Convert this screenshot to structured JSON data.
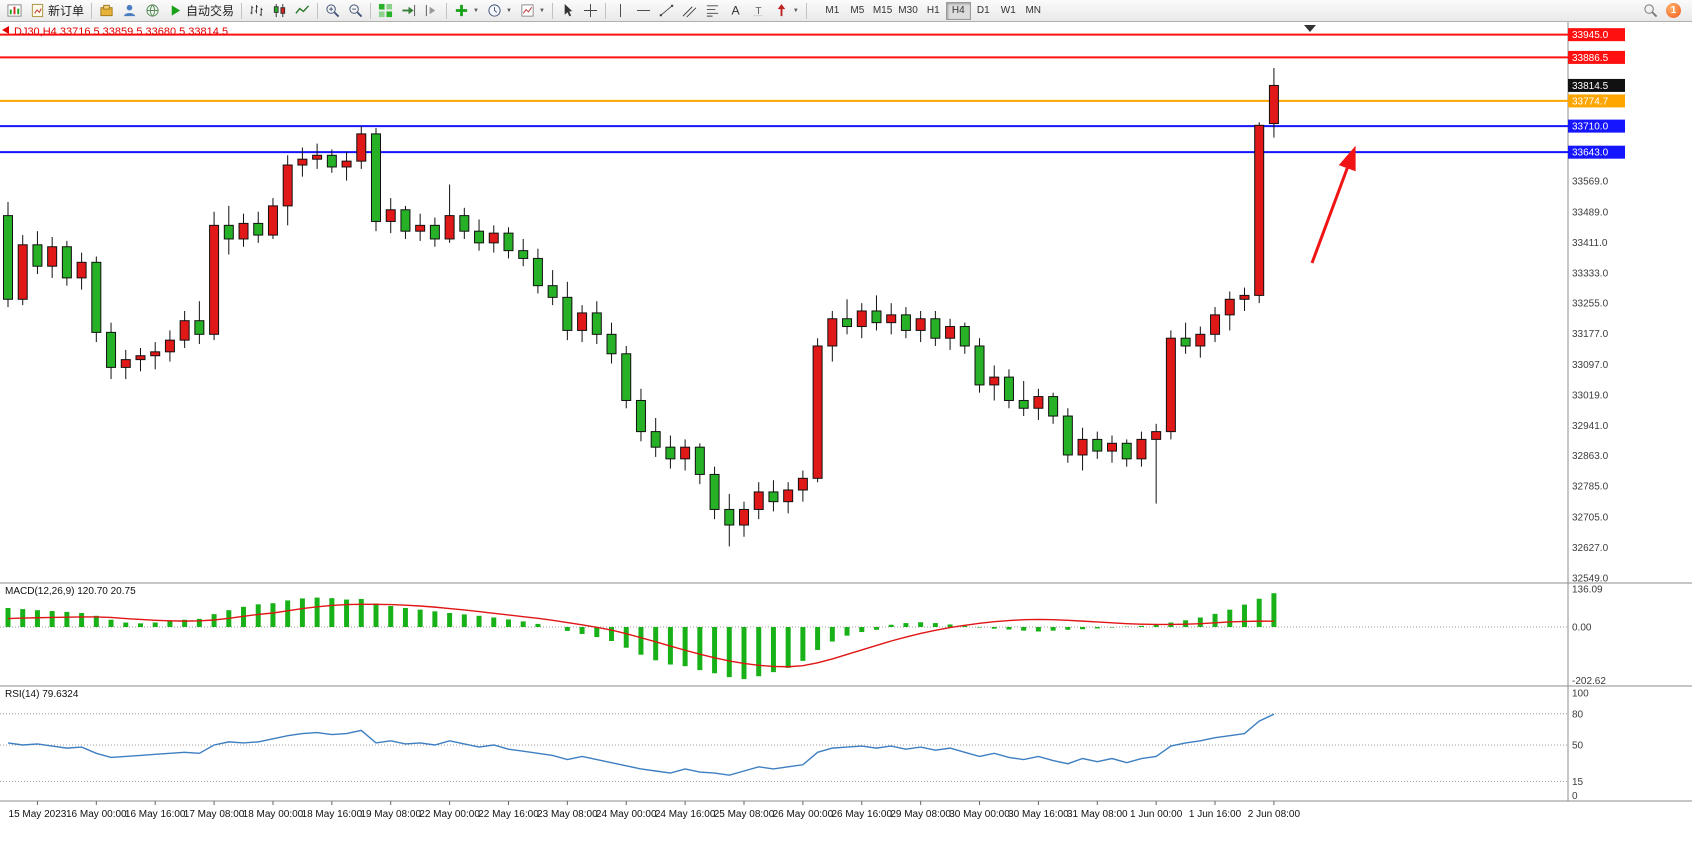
{
  "toolbar": {
    "new_order_label": "新订单",
    "autotrading_label": "自动交易",
    "timeframes": [
      "M1",
      "M5",
      "M15",
      "M30",
      "H1",
      "H4",
      "D1",
      "W1",
      "MN"
    ],
    "active_timeframe": "H4",
    "notification_count": "1"
  },
  "chart": {
    "symbol_info": "DJ30,H4 33716.5 33859.5 33680.5 33814.5",
    "symbol": "DJ30",
    "timeframe": "H4",
    "open": "33716.5",
    "high": "33859.5",
    "low": "33680.5",
    "close": "33814.5",
    "current_price": "33814.5",
    "colors": {
      "up_candle": "#e11818",
      "down_candle": "#27b127",
      "level_red": "#ff1010",
      "level_orange": "#ffa500",
      "level_blue": "#1515ff",
      "current_price_badge": "#111111",
      "macd_hist": "#18b118",
      "macd_signal": "#e01515",
      "rsi_line": "#3e7fc1",
      "arrow": "#f01414"
    },
    "levels": [
      {
        "label": "33945.0",
        "price": 33945.0,
        "color": "red"
      },
      {
        "label": "33886.5",
        "price": 33886.5,
        "color": "red"
      },
      {
        "label": "33774.7",
        "price": 33774.7,
        "color": "orange"
      },
      {
        "label": "33710.0",
        "price": 33710.0,
        "color": "blue"
      },
      {
        "label": "33643.0",
        "price": 33643.0,
        "color": "blue"
      }
    ],
    "y_axis_labels": [
      33569.0,
      33489.0,
      33411.0,
      33333.0,
      33255.0,
      33177.0,
      33097.0,
      33019.0,
      32941.0,
      32863.0,
      32785.0,
      32705.0,
      32627.0,
      32549.0
    ]
  },
  "macd": {
    "label": "MACD(12,26,9) 120.70 20.75",
    "axis_labels": [
      "136.09",
      "0.00",
      "-202.62"
    ]
  },
  "rsi": {
    "label": "RSI(14) 79.6324",
    "axis_labels": [
      "100",
      "80",
      "50",
      "15",
      "0"
    ],
    "levels": [
      80,
      50,
      15
    ]
  },
  "time_axis": {
    "labels": [
      [
        2,
        "15 May 2023"
      ],
      [
        6,
        "16 May 00:00"
      ],
      [
        10,
        "16 May 16:00"
      ],
      [
        14,
        "17 May 08:00"
      ],
      [
        18,
        "18 May 00:00"
      ],
      [
        22,
        "18 May 16:00"
      ],
      [
        26,
        "19 May 08:00"
      ],
      [
        30,
        "22 May 00:00"
      ],
      [
        34,
        "22 May 16:00"
      ],
      [
        38,
        "23 May 08:00"
      ],
      [
        42,
        "24 May 00:00"
      ],
      [
        46,
        "24 May 16:00"
      ],
      [
        50,
        "25 May 08:00"
      ],
      [
        54,
        "26 May 00:00"
      ],
      [
        58,
        "26 May 16:00"
      ],
      [
        62,
        "29 May 08:00"
      ],
      [
        66,
        "30 May 00:00"
      ],
      [
        70,
        "30 May 16:00"
      ],
      [
        74,
        "31 May 08:00"
      ],
      [
        78,
        "1 Jun 00:00"
      ],
      [
        82,
        "1 Jun 16:00"
      ],
      [
        86,
        "2 Jun 08:00"
      ]
    ]
  },
  "chart_data": {
    "type": "candlestick",
    "symbol": "DJ30",
    "period": "H4",
    "y_range_main": [
      32536,
      33977.5
    ],
    "macd_range": [
      -202.62,
      136.09
    ],
    "rsi_range": [
      0,
      100
    ],
    "candles": [
      [
        33480,
        33515,
        33245,
        33265
      ],
      [
        33265,
        33430,
        33250,
        33405
      ],
      [
        33405,
        33440,
        33330,
        33350
      ],
      [
        33350,
        33425,
        33320,
        33400
      ],
      [
        33400,
        33415,
        33300,
        33320
      ],
      [
        33320,
        33385,
        33290,
        33360
      ],
      [
        33360,
        33375,
        33155,
        33180
      ],
      [
        33180,
        33205,
        33060,
        33090
      ],
      [
        33090,
        33135,
        33060,
        33110
      ],
      [
        33110,
        33140,
        33080,
        33120
      ],
      [
        33120,
        33155,
        33085,
        33130
      ],
      [
        33130,
        33185,
        33105,
        33160
      ],
      [
        33160,
        33235,
        33140,
        33210
      ],
      [
        33210,
        33260,
        33150,
        33175
      ],
      [
        33175,
        33490,
        33160,
        33455
      ],
      [
        33455,
        33505,
        33380,
        33420
      ],
      [
        33420,
        33485,
        33400,
        33460
      ],
      [
        33460,
        33490,
        33410,
        33430
      ],
      [
        33430,
        33525,
        33420,
        33505
      ],
      [
        33505,
        33635,
        33455,
        33610
      ],
      [
        33610,
        33655,
        33580,
        33625
      ],
      [
        33625,
        33665,
        33600,
        33635
      ],
      [
        33635,
        33650,
        33590,
        33605
      ],
      [
        33605,
        33645,
        33570,
        33620
      ],
      [
        33620,
        33710,
        33600,
        33690
      ],
      [
        33690,
        33705,
        33440,
        33465
      ],
      [
        33465,
        33525,
        33435,
        33495
      ],
      [
        33495,
        33505,
        33420,
        33440
      ],
      [
        33440,
        33485,
        33415,
        33455
      ],
      [
        33455,
        33475,
        33400,
        33420
      ],
      [
        33420,
        33560,
        33410,
        33480
      ],
      [
        33480,
        33500,
        33420,
        33440
      ],
      [
        33440,
        33470,
        33390,
        33410
      ],
      [
        33410,
        33455,
        33385,
        33435
      ],
      [
        33435,
        33450,
        33370,
        33390
      ],
      [
        33390,
        33420,
        33350,
        33370
      ],
      [
        33370,
        33395,
        33280,
        33300
      ],
      [
        33300,
        33340,
        33250,
        33270
      ],
      [
        33270,
        33310,
        33160,
        33185
      ],
      [
        33185,
        33250,
        33155,
        33230
      ],
      [
        33230,
        33260,
        33150,
        33175
      ],
      [
        33175,
        33205,
        33100,
        33125
      ],
      [
        33125,
        33145,
        32985,
        33005
      ],
      [
        33005,
        33035,
        32900,
        32925
      ],
      [
        32925,
        32960,
        32860,
        32885
      ],
      [
        32885,
        32915,
        32830,
        32855
      ],
      [
        32855,
        32905,
        32825,
        32885
      ],
      [
        32885,
        32895,
        32790,
        32815
      ],
      [
        32815,
        32835,
        32700,
        32725
      ],
      [
        32725,
        32765,
        32630,
        32685
      ],
      [
        32685,
        32745,
        32655,
        32725
      ],
      [
        32725,
        32795,
        32700,
        32770
      ],
      [
        32770,
        32800,
        32720,
        32745
      ],
      [
        32745,
        32795,
        32715,
        32775
      ],
      [
        32775,
        32825,
        32745,
        32805
      ],
      [
        32805,
        33165,
        32795,
        33145
      ],
      [
        33145,
        33235,
        33105,
        33215
      ],
      [
        33215,
        33265,
        33175,
        33195
      ],
      [
        33195,
        33255,
        33165,
        33235
      ],
      [
        33235,
        33275,
        33185,
        33205
      ],
      [
        33205,
        33255,
        33175,
        33225
      ],
      [
        33225,
        33245,
        33165,
        33185
      ],
      [
        33185,
        33235,
        33155,
        33215
      ],
      [
        33215,
        33235,
        33145,
        33165
      ],
      [
        33165,
        33215,
        33135,
        33195
      ],
      [
        33195,
        33205,
        33125,
        33145
      ],
      [
        33145,
        33165,
        33025,
        33045
      ],
      [
        33045,
        33095,
        33005,
        33065
      ],
      [
        33065,
        33085,
        32985,
        33005
      ],
      [
        33005,
        33055,
        32965,
        32985
      ],
      [
        32985,
        33035,
        32955,
        33015
      ],
      [
        33015,
        33025,
        32945,
        32965
      ],
      [
        32965,
        32985,
        32845,
        32865
      ],
      [
        32865,
        32935,
        32825,
        32905
      ],
      [
        32905,
        32925,
        32855,
        32875
      ],
      [
        32875,
        32915,
        32845,
        32895
      ],
      [
        32895,
        32905,
        32835,
        32855
      ],
      [
        32855,
        32925,
        32835,
        32905
      ],
      [
        32905,
        32945,
        32740,
        32925
      ],
      [
        32925,
        33185,
        32905,
        33165
      ],
      [
        33165,
        33205,
        33125,
        33145
      ],
      [
        33145,
        33195,
        33115,
        33175
      ],
      [
        33175,
        33245,
        33155,
        33225
      ],
      [
        33225,
        33285,
        33185,
        33265
      ],
      [
        33265,
        33295,
        33235,
        33275
      ],
      [
        33275,
        33720,
        33255,
        33712
      ],
      [
        33716.5,
        33859.5,
        33680.5,
        33814.5
      ]
    ],
    "macd_histogram": [
      68,
      64,
      60,
      57,
      54,
      50,
      40,
      26,
      16,
      13,
      16,
      21,
      26,
      29,
      46,
      60,
      72,
      81,
      85,
      95,
      102,
      105,
      103,
      98,
      100,
      84,
      75,
      68,
      62,
      56,
      50,
      45,
      40,
      34,
      27,
      20,
      11,
      0,
      -14,
      -25,
      -36,
      -50,
      -74,
      -99,
      -119,
      -134,
      -140,
      -154,
      -165,
      -179,
      -186,
      -176,
      -161,
      -146,
      -121,
      -82,
      -52,
      -31,
      -18,
      -10,
      8,
      14,
      17,
      14,
      9,
      4,
      -2,
      -6,
      -9,
      -13,
      -16,
      -13,
      -10,
      -8,
      -5,
      -2,
      1,
      4,
      9,
      16,
      24,
      34,
      47,
      62,
      80,
      101,
      120.7
    ],
    "macd_signal": [
      30,
      32,
      33,
      34,
      35,
      36,
      36,
      34,
      30,
      27,
      24,
      22,
      21,
      22,
      25,
      31,
      38,
      45,
      50,
      58,
      66,
      72,
      77,
      80,
      81,
      81,
      80,
      78,
      75,
      71,
      66,
      61,
      55,
      49,
      43,
      37,
      31,
      24,
      16,
      8,
      -1,
      -11,
      -24,
      -38,
      -53,
      -68,
      -83,
      -97,
      -110,
      -121,
      -130,
      -137,
      -141,
      -142,
      -138,
      -128,
      -114,
      -98,
      -82,
      -66,
      -50,
      -36,
      -23,
      -12,
      -2,
      6,
      13,
      19,
      23,
      26,
      27,
      26,
      24,
      21,
      18,
      15,
      12,
      10,
      9,
      9,
      10,
      12,
      15,
      18,
      20,
      21,
      20.75
    ],
    "rsi": [
      52,
      50,
      51,
      49,
      47,
      48,
      42,
      38,
      39,
      40,
      41,
      42,
      43,
      42,
      50,
      53,
      52,
      53,
      56,
      59,
      61,
      62,
      60,
      61,
      64,
      52,
      54,
      51,
      52,
      50,
      54,
      51,
      48,
      50,
      46,
      44,
      42,
      40,
      36,
      39,
      36,
      33,
      30,
      27,
      25,
      23,
      27,
      24,
      23,
      21,
      25,
      29,
      27,
      29,
      31,
      43,
      47,
      48,
      49,
      47,
      49,
      46,
      48,
      45,
      47,
      43,
      39,
      42,
      38,
      36,
      39,
      35,
      32,
      37,
      34,
      37,
      33,
      37,
      39,
      49,
      52,
      54,
      57,
      59,
      61,
      73,
      79.63
    ]
  }
}
